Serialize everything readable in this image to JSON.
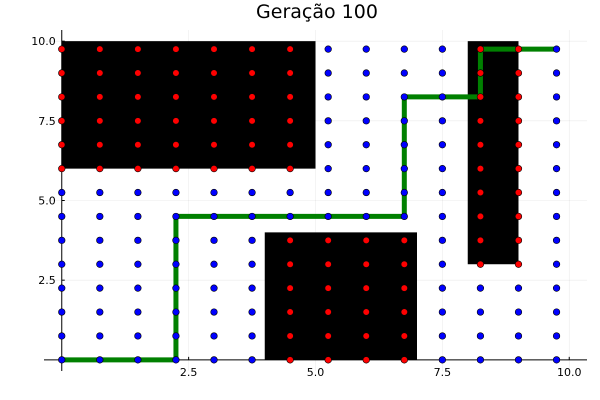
{
  "chart_data": {
    "type": "scatter",
    "title": "Geração 100",
    "xlabel": "",
    "ylabel": "",
    "xlim": [
      -0.35,
      10.35
    ],
    "ylim": [
      -0.35,
      10.35
    ],
    "grid": true,
    "legend": "none",
    "x_ticks": [
      2.5,
      5.0,
      7.5,
      10.0
    ],
    "y_ticks": [
      2.5,
      5.0,
      7.5,
      10.0
    ],
    "x_tick_labels": [
      "2.5",
      "5.0",
      "7.5",
      "10.0"
    ],
    "y_tick_labels": [
      "2.5",
      "5.0",
      "7.5",
      "10.0"
    ],
    "obstacles": [
      {
        "x0": 0,
        "x1": 5.0,
        "y0": 6.0,
        "y1": 10.0
      },
      {
        "x0": 4.0,
        "x1": 7.0,
        "y0": 0,
        "y1": 4.0
      },
      {
        "x0": 8.0,
        "x1": 9.0,
        "y0": 3.0,
        "y1": 10.0
      }
    ],
    "grid_points": {
      "x_values": [
        0,
        0.75,
        1.5,
        2.25,
        3.0,
        3.75,
        4.5,
        5.25,
        6.0,
        6.75,
        7.5,
        8.25,
        9.0,
        9.75
      ],
      "y_values": [
        0,
        0.75,
        1.5,
        2.25,
        3.0,
        3.75,
        4.5,
        5.25,
        6.0,
        6.75,
        7.5,
        8.25,
        9.0,
        9.75
      ],
      "free_color": "#0000ff",
      "blocked_color": "#ff0000"
    },
    "path": {
      "color": "#008000",
      "points": [
        [
          0,
          0
        ],
        [
          2.25,
          0
        ],
        [
          2.25,
          4.5
        ],
        [
          6.75,
          4.5
        ],
        [
          6.75,
          8.25
        ],
        [
          8.25,
          8.25
        ],
        [
          8.25,
          9.75
        ],
        [
          9.75,
          9.75
        ]
      ]
    }
  }
}
